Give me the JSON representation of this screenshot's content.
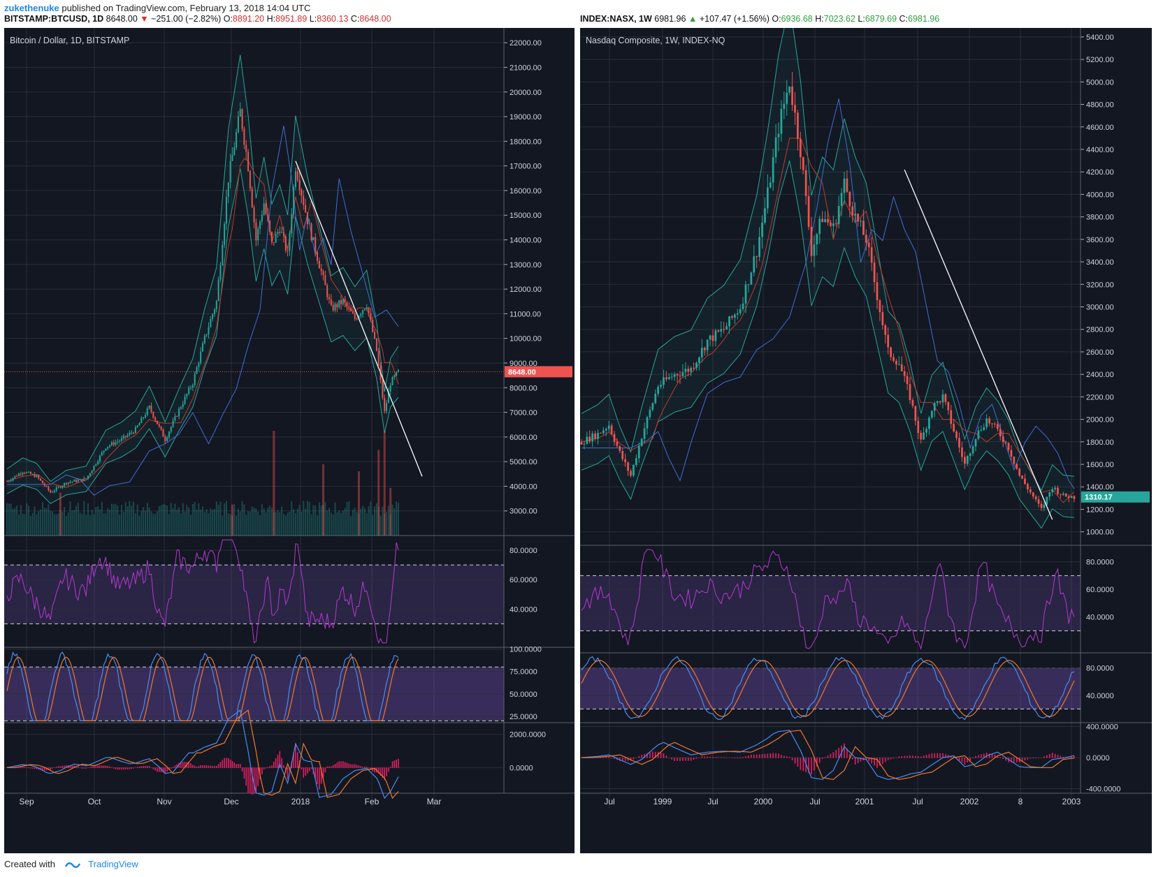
{
  "publish": {
    "user": "zukethenuke",
    "text": " published on TradingView.com, February 13, 2018 14:04 UTC"
  },
  "footer": {
    "created": "Created with",
    "brand": "TradingView"
  },
  "colors": {
    "background": "#131722",
    "grid": "#2a2e39",
    "up": "#26a69a",
    "down": "#ef5350",
    "bb": "#26a69a",
    "ma_red": "#c0392b",
    "ma_blue": "#3f6fd1",
    "rsi": "#b43ad0",
    "stoch_k": "#4a8cf0",
    "stoch_d": "#f0782c",
    "macd_hist": "#e91e63"
  },
  "chart_data": [
    {
      "type": "line",
      "header": {
        "symbol": "BITSTAMP:BTCUSD, 1D",
        "last": "8648.00",
        "change": "−251.00 (−2.82%)",
        "o_label": "O:",
        "o": "8891.20",
        "h_label": "H:",
        "h": "8951.89",
        "l_label": "L:",
        "l": "8360.13",
        "c_label": "C:",
        "c": "8648.00"
      },
      "title": "Bitcoin / Dollar, 1D, BITSTAMP",
      "price_ticks": [
        "3000.00",
        "4000.00",
        "5000.00",
        "6000.00",
        "7000.00",
        "8000.00",
        "9000.00",
        "10000.00",
        "11000.00",
        "12000.00",
        "13000.00",
        "14000.00",
        "15000.00",
        "16000.00",
        "17000.00",
        "18000.00",
        "19000.00",
        "20000.00",
        "21000.00",
        "22000.00"
      ],
      "price_label": "8648.00",
      "price_value": 8648,
      "ylim": [
        2000,
        22600
      ],
      "x_labels": [
        "Sep",
        "Oct",
        "Nov",
        "Dec",
        "2018",
        "Feb",
        "Mar"
      ],
      "price_path": [
        [
          0,
          4200
        ],
        [
          8,
          4600
        ],
        [
          15,
          4400
        ],
        [
          22,
          3750
        ],
        [
          30,
          4150
        ],
        [
          40,
          4300
        ],
        [
          50,
          5600
        ],
        [
          58,
          5900
        ],
        [
          65,
          6300
        ],
        [
          72,
          7200
        ],
        [
          80,
          5900
        ],
        [
          87,
          7100
        ],
        [
          94,
          8200
        ],
        [
          100,
          10000
        ],
        [
          106,
          11500
        ],
        [
          112,
          16500
        ],
        [
          118,
          19200
        ],
        [
          122,
          17000
        ],
        [
          126,
          14000
        ],
        [
          130,
          15500
        ],
        [
          134,
          13800
        ],
        [
          138,
          14500
        ],
        [
          142,
          13400
        ],
        [
          146,
          17000
        ],
        [
          152,
          14800
        ],
        [
          158,
          13000
        ],
        [
          164,
          11200
        ],
        [
          170,
          11500
        ],
        [
          176,
          10800
        ],
        [
          182,
          11400
        ],
        [
          187,
          9500
        ],
        [
          191,
          7000
        ],
        [
          194,
          8200
        ],
        [
          198,
          8648
        ]
      ],
      "trendline": [
        [
          146,
          17200
        ],
        [
          210,
          4400
        ]
      ],
      "volume_spikes": [
        [
          27,
          1800
        ],
        [
          114,
          1300
        ],
        [
          135,
          4400
        ],
        [
          160,
          3000
        ],
        [
          178,
          2700
        ],
        [
          188,
          3600
        ],
        [
          191,
          4400
        ],
        [
          194,
          2000
        ]
      ],
      "rsi_ticks": [
        "40.0000",
        "60.0000",
        "80.0000"
      ],
      "rsi_levels": [
        30,
        70
      ],
      "stoch_ticks": [
        "25.0000",
        "50.0000",
        "75.0000",
        "100.0000"
      ],
      "macd_ticks": [
        "0.0000",
        "2000.0000"
      ],
      "macd_range": [
        -1500,
        2700
      ]
    },
    {
      "type": "line",
      "header": {
        "symbol": "INDEX:NASX, 1W",
        "last": "6981.96",
        "change": "+107.47 (+1.56%)",
        "o_label": "O:",
        "o": "6936.68",
        "h_label": "H:",
        "h": "7023.62",
        "l_label": "L:",
        "l": "6879.69",
        "c_label": "C:",
        "c": "6981.96"
      },
      "title": "Nasdaq Composite, 1W, INDEX-NQ",
      "price_ticks": [
        "1000.00",
        "1200.00",
        "1400.00",
        "1600.00",
        "1800.00",
        "2000.00",
        "2200.00",
        "2400.00",
        "2600.00",
        "2800.00",
        "3000.00",
        "3200.00",
        "3400.00",
        "3600.00",
        "3800.00",
        "4000.00",
        "4200.00",
        "4400.00",
        "4600.00",
        "4800.00",
        "5000.00",
        "5200.00",
        "5400.00"
      ],
      "price_label": "1310.17",
      "price_value": 1310,
      "ylim": [
        880,
        5480
      ],
      "x_labels": [
        "Jul",
        "1999",
        "Jul",
        "2000",
        "Jul",
        "2001",
        "Jul",
        "2002",
        "8",
        "2003"
      ],
      "price_path": [
        [
          0,
          1800
        ],
        [
          6,
          1870
        ],
        [
          10,
          1950
        ],
        [
          14,
          1700
        ],
        [
          18,
          1500
        ],
        [
          22,
          1850
        ],
        [
          28,
          2300
        ],
        [
          34,
          2400
        ],
        [
          40,
          2450
        ],
        [
          46,
          2700
        ],
        [
          52,
          2800
        ],
        [
          58,
          3000
        ],
        [
          64,
          3500
        ],
        [
          68,
          4000
        ],
        [
          72,
          4600
        ],
        [
          76,
          5000
        ],
        [
          80,
          4400
        ],
        [
          84,
          3500
        ],
        [
          88,
          3800
        ],
        [
          92,
          3700
        ],
        [
          96,
          4100
        ],
        [
          100,
          3800
        ],
        [
          104,
          3600
        ],
        [
          108,
          3100
        ],
        [
          112,
          2600
        ],
        [
          116,
          2500
        ],
        [
          120,
          2200
        ],
        [
          124,
          1800
        ],
        [
          128,
          2100
        ],
        [
          132,
          2200
        ],
        [
          136,
          1900
        ],
        [
          140,
          1600
        ],
        [
          144,
          1850
        ],
        [
          148,
          2000
        ],
        [
          152,
          1900
        ],
        [
          156,
          1750
        ],
        [
          160,
          1500
        ],
        [
          164,
          1350
        ],
        [
          168,
          1200
        ],
        [
          172,
          1400
        ],
        [
          176,
          1320
        ],
        [
          180,
          1310
        ]
      ],
      "trendline": [
        [
          118,
          4220
        ],
        [
          172,
          1110
        ]
      ],
      "rsi_ticks": [
        "40.0000",
        "60.0000",
        "80.0000"
      ],
      "rsi_levels": [
        30,
        70
      ],
      "stoch_ticks": [
        "40.0000",
        "80.0000"
      ],
      "macd_ticks": [
        "-400.0000",
        "0.0000",
        "400.0000"
      ],
      "macd_range": [
        -450,
        450
      ]
    }
  ]
}
